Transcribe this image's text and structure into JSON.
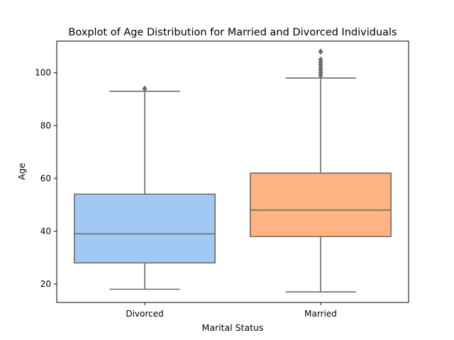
{
  "chart_data": {
    "type": "boxplot",
    "title": "Boxplot of Age Distribution for Married and Divorced Individuals",
    "xlabel": "Marital Status",
    "ylabel": "Age",
    "ylim": [
      13,
      112
    ],
    "yticks": [
      20,
      40,
      60,
      80,
      100
    ],
    "grid": false,
    "categories": [
      "Divorced",
      "Married"
    ],
    "colors": {
      "Divorced": "#a1c9f4",
      "Married": "#ffb482",
      "line": "#6b6b6b"
    },
    "boxes": [
      {
        "category": "Divorced",
        "whisker_low": 18,
        "q1": 28,
        "median": 39,
        "q3": 54,
        "whisker_high": 93,
        "outliers": [
          94
        ]
      },
      {
        "category": "Married",
        "whisker_low": 17,
        "q1": 38,
        "median": 48,
        "q3": 62,
        "whisker_high": 98,
        "outliers": [
          99,
          100,
          101,
          102,
          103,
          104,
          105,
          108
        ]
      }
    ]
  }
}
